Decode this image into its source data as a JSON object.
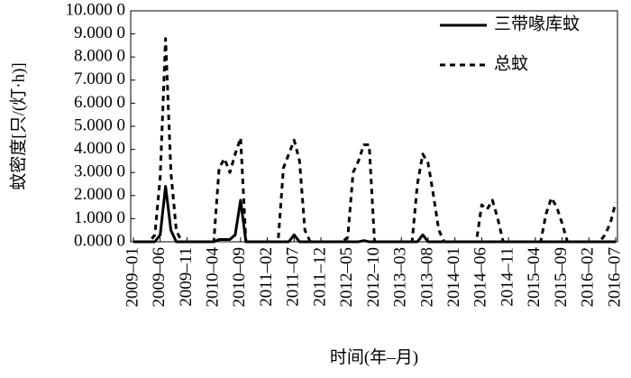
{
  "chart_data": {
    "type": "line",
    "xlabel": "时间(年–月)",
    "ylabel": "蚊密度[只/(灯·h)]",
    "legend": "upper right",
    "categories": [
      "2009–01",
      null,
      null,
      null,
      null,
      "2009–06",
      null,
      null,
      null,
      null,
      "2009–11",
      null,
      null,
      null,
      null,
      "2010–04",
      null,
      null,
      null,
      null,
      "2010–09",
      null,
      null,
      null,
      null,
      "2011–02",
      null,
      null,
      null,
      null,
      "2011–07",
      null,
      null,
      null,
      null,
      "2011–12",
      null,
      null,
      null,
      null,
      "2012–05",
      null,
      null,
      null,
      null,
      "2012–10",
      null,
      null,
      null,
      null,
      "2013–03",
      null,
      null,
      null,
      null,
      "2013–08",
      null,
      null,
      null,
      null,
      "2014–01",
      null,
      null,
      null,
      null,
      "2014–06",
      null,
      null,
      null,
      null,
      "2014–11",
      null,
      null,
      null,
      null,
      "2015–04",
      null,
      null,
      null,
      null,
      "2015–09",
      null,
      null,
      null,
      null,
      "2016–02",
      null,
      null,
      null,
      null,
      "2016–07"
    ],
    "series": [
      {
        "name": "三带喙库蚊",
        "color": "#000000",
        "dash": false,
        "values": [
          0,
          0,
          0,
          0,
          0,
          0.3,
          2.4,
          0.5,
          0,
          0,
          0,
          0,
          0,
          0,
          0,
          0,
          0.1,
          0.1,
          0.1,
          0.3,
          1.8,
          0,
          0,
          0,
          0,
          0,
          0,
          0,
          0,
          0,
          0.3,
          0,
          0,
          0,
          0,
          0,
          0,
          0,
          0,
          0,
          0,
          0,
          0,
          0.05,
          0,
          0,
          0,
          0,
          0,
          0,
          0,
          0,
          0,
          0,
          0.3,
          0,
          0,
          0,
          0,
          0,
          0,
          0,
          0,
          0,
          0,
          0,
          0,
          0,
          0,
          0,
          0,
          0,
          0,
          0,
          0,
          0,
          0,
          0,
          0,
          0,
          0,
          0,
          0,
          0,
          0,
          0,
          0,
          0,
          0,
          0,
          0
        ]
      },
      {
        "name": "总蚊",
        "color": "#000000",
        "dash": true,
        "values": [
          0,
          0,
          0,
          0,
          0.3,
          2.8,
          8.8,
          3,
          0.5,
          0,
          0,
          0,
          0,
          0,
          0,
          0,
          3.2,
          3.6,
          3.0,
          3.8,
          4.5,
          0,
          0,
          0,
          0,
          0,
          0,
          0,
          3.2,
          3.8,
          4.4,
          3.5,
          0.5,
          0,
          0,
          0,
          0,
          0,
          0,
          0,
          0.2,
          3.0,
          3.5,
          4.2,
          4.2,
          0,
          0,
          0,
          0,
          0,
          0,
          0,
          0,
          2.5,
          3.8,
          3.4,
          2.0,
          0.5,
          0,
          0,
          0,
          0,
          0,
          0,
          0,
          1.6,
          1.4,
          1.8,
          1.0,
          0,
          0,
          0,
          0,
          0,
          0,
          0,
          0,
          1.2,
          1.9,
          1.5,
          0.8,
          0,
          0,
          0,
          0,
          0,
          0,
          0,
          0.3,
          0.8,
          1.7
        ]
      }
    ],
    "ylim": [
      0,
      10
    ],
    "yticks": [
      {
        "value": 0,
        "label": "0.000 0"
      },
      {
        "value": 1,
        "label": "1.000 0"
      },
      {
        "value": 2,
        "label": "2.000 0"
      },
      {
        "value": 3,
        "label": "3.000 0"
      },
      {
        "value": 4,
        "label": "4.000 0"
      },
      {
        "value": 5,
        "label": "5.000 0"
      },
      {
        "value": 6,
        "label": "6.000 0"
      },
      {
        "value": 7,
        "label": "7.000 0"
      },
      {
        "value": 8,
        "label": "8.000 0"
      },
      {
        "value": 9,
        "label": "9.000 0"
      },
      {
        "value": 10,
        "label": "10.000 0"
      }
    ]
  }
}
